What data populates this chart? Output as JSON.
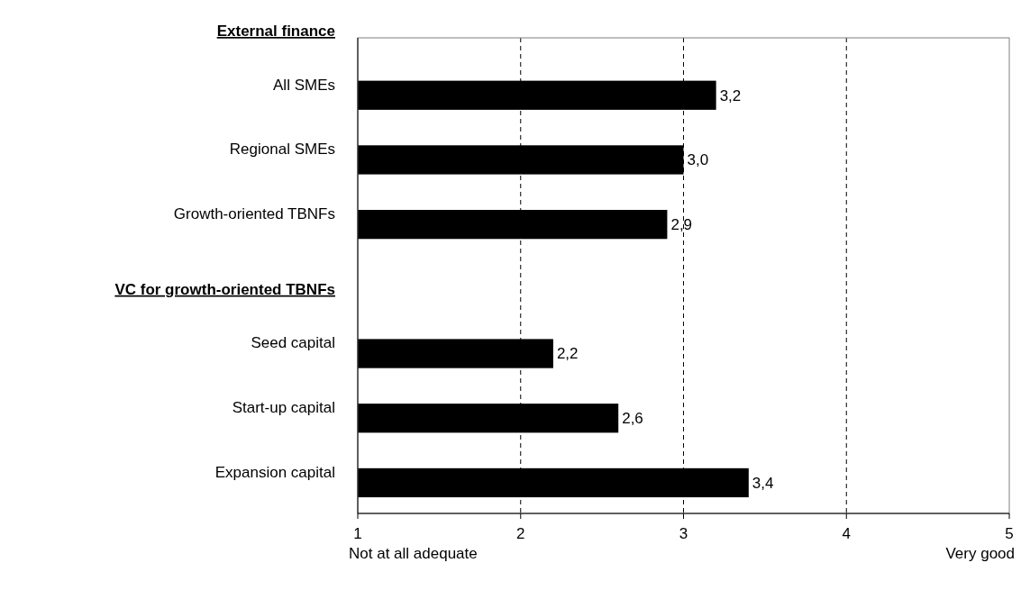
{
  "chart_data": {
    "type": "bar",
    "orientation": "horizontal",
    "categories": [
      "External finance",
      "All SMEs",
      "Regional SMEs",
      "Growth-oriented TBNFs",
      "VC for growth-oriented TBNFs",
      "Seed capital",
      "Start-up capital",
      "Expansion capital"
    ],
    "values": [
      null,
      3.2,
      3.0,
      2.9,
      null,
      2.2,
      2.6,
      3.4
    ],
    "value_labels": [
      null,
      "3,2",
      "3,0",
      "2,9",
      null,
      "2,2",
      "2,6",
      "3,4"
    ],
    "color": "#000000",
    "xlim": [
      1,
      5
    ],
    "xticks": [
      1,
      2,
      3,
      4,
      5
    ],
    "grid": "x",
    "annotations": [
      "Not at all adequate",
      "Very good"
    ]
  }
}
